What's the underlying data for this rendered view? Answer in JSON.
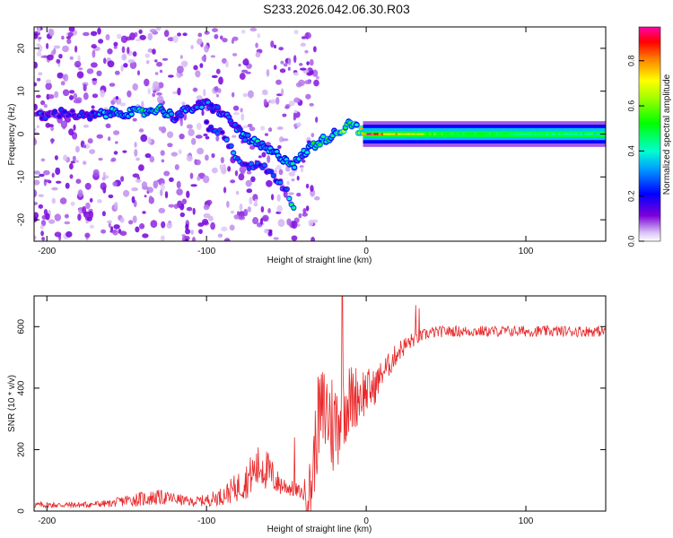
{
  "figure_title": "S233.2026.042.06.30.R03",
  "chart_data": [
    {
      "type": "heatmap",
      "title": "S233.2026.042.06.30.R03",
      "xlabel": "Height of straight line (km)",
      "ylabel": "Frequency (Hz)",
      "xlim": [
        -208,
        150
      ],
      "ylim": [
        -25,
        25
      ],
      "xticks": [
        -200,
        -100,
        0,
        100
      ],
      "yticks": [
        -20,
        -10,
        0,
        10,
        20
      ],
      "colorbar": {
        "label": "Normalized spectral amplitude",
        "range": [
          0.0,
          0.95
        ],
        "ticks": [
          0.0,
          0.2,
          0.4,
          0.6,
          0.8
        ]
      },
      "main_trace": {
        "x": [
          -205,
          -190,
          -175,
          -160,
          -150,
          -140,
          -130,
          -120,
          -110,
          -100,
          -90,
          -85,
          -80,
          -75,
          -70,
          -65,
          -60,
          -55,
          -50,
          -45,
          -40,
          -35,
          -30,
          -25,
          -20,
          -15,
          -10,
          -5,
          0,
          10,
          20,
          40,
          60,
          80,
          100,
          120,
          150
        ],
        "freq": [
          4,
          5,
          4,
          5,
          5,
          5,
          6,
          4,
          6,
          7,
          5,
          3,
          1,
          -1,
          -2,
          -3,
          -4,
          -5,
          -6,
          -7,
          -5,
          -3,
          -2,
          -1,
          0,
          1,
          3,
          1,
          0,
          0,
          0,
          0,
          0,
          0,
          0,
          0,
          0
        ],
        "amplitude": [
          0.25,
          0.2,
          0.25,
          0.35,
          0.4,
          0.45,
          0.4,
          0.3,
          0.3,
          0.3,
          0.3,
          0.25,
          0.3,
          0.35,
          0.4,
          0.35,
          0.35,
          0.35,
          0.4,
          0.35,
          0.35,
          0.4,
          0.45,
          0.5,
          0.45,
          0.55,
          0.5,
          0.55,
          0.9,
          0.85,
          0.75,
          0.6,
          0.5,
          0.5,
          0.45,
          0.45,
          0.4
        ]
      },
      "secondary_trace": {
        "x": [
          -100,
          -90,
          -85,
          -80,
          -75,
          -70,
          -65,
          -60,
          -55,
          -50,
          -45
        ],
        "freq": [
          2,
          0,
          -3,
          -6,
          -7,
          -8,
          -7,
          -9,
          -11,
          -13,
          -18
        ],
        "amplitude": [
          0.25,
          0.25,
          0.3,
          0.3,
          0.25,
          0.25,
          0.25,
          0.25,
          0.3,
          0.3,
          0.45
        ]
      },
      "scatter_region": {
        "x": [
          -208,
          -30
        ],
        "freq": [
          -25,
          25
        ]
      }
    },
    {
      "type": "line",
      "title": "",
      "xlabel": "Height of straight line (km)",
      "ylabel": "SNR (10 * v/v)",
      "xlim": [
        -208,
        150
      ],
      "ylim": [
        0,
        700
      ],
      "xticks": [
        -200,
        -100,
        0,
        100
      ],
      "yticks": [
        0,
        200,
        400,
        600
      ],
      "series": [
        {
          "name": "SNR",
          "color": "#e8292b",
          "x": [
            -208,
            -200,
            -180,
            -160,
            -150,
            -140,
            -130,
            -120,
            -110,
            -100,
            -90,
            -80,
            -75,
            -70,
            -65,
            -60,
            -55,
            -50,
            -45,
            -40,
            -35,
            -30,
            -25,
            -20,
            -15,
            -10,
            -5,
            0,
            5,
            10,
            15,
            20,
            25,
            30,
            35,
            40,
            50,
            60,
            80,
            100,
            120,
            150
          ],
          "mean": [
            20,
            20,
            20,
            25,
            35,
            40,
            45,
            40,
            30,
            35,
            50,
            80,
            100,
            130,
            150,
            120,
            90,
            80,
            70,
            60,
            60,
            300,
            330,
            270,
            350,
            360,
            380,
            390,
            400,
            450,
            480,
            520,
            540,
            560,
            570,
            580,
            585,
            585,
            585,
            585,
            585,
            585
          ],
          "noise": [
            10,
            10,
            10,
            12,
            20,
            25,
            25,
            20,
            15,
            20,
            30,
            50,
            60,
            70,
            80,
            60,
            40,
            30,
            25,
            20,
            120,
            150,
            170,
            180,
            150,
            120,
            100,
            80,
            60,
            45,
            40,
            35,
            30,
            25,
            20,
            20,
            18,
            18,
            18,
            18,
            18,
            18
          ],
          "spikes": [
            {
              "x": -15,
              "y": 700
            },
            {
              "x": -45,
              "y": 240
            },
            {
              "x": 31,
              "y": 670
            },
            {
              "x": 33,
              "y": 660
            }
          ]
        }
      ]
    }
  ]
}
